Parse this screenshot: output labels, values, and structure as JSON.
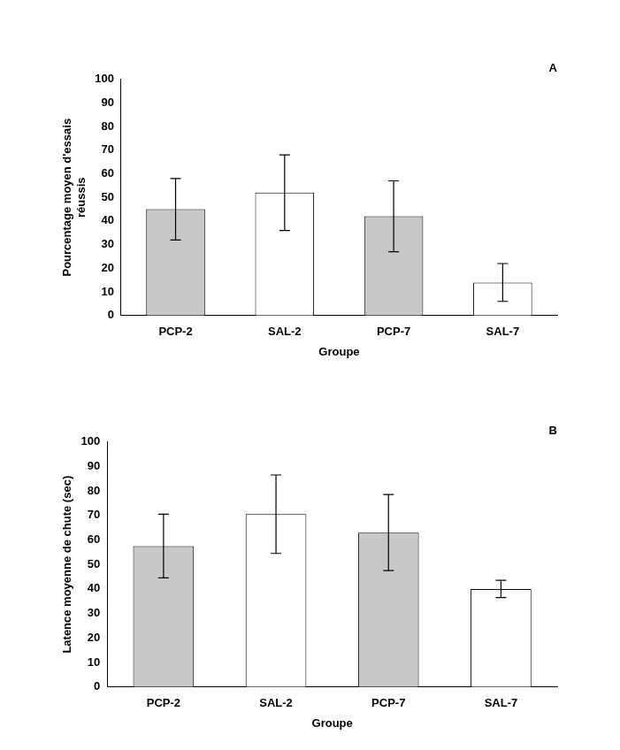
{
  "chart_data": [
    {
      "type": "bar",
      "title": "A",
      "y_label": [
        "Pourcentage moyen d'essais",
        "réussis"
      ],
      "x_label": "Groupe",
      "categories": [
        "PCP-2",
        "SAL-2",
        "PCP-7",
        "SAL-7"
      ],
      "values": [
        45,
        52,
        42,
        14
      ],
      "error": [
        13,
        16,
        15,
        8
      ],
      "colors": [
        "#c8c8c8",
        "#ffffff",
        "#c8c8c8",
        "#ffffff"
      ],
      "ylim": [
        0,
        100
      ],
      "yticks": [
        0,
        10,
        20,
        30,
        40,
        50,
        60,
        70,
        80,
        90,
        100
      ],
      "grid": false
    },
    {
      "type": "bar",
      "title": "B",
      "y_label": "Latence moyenne de chute (sec)",
      "x_label": "Groupe",
      "categories": [
        "PCP-2",
        "SAL-2",
        "PCP-7",
        "SAL-7"
      ],
      "values": [
        57.5,
        70.5,
        63,
        40
      ],
      "error": [
        13,
        16,
        15.5,
        3.5
      ],
      "colors": [
        "#c8c8c8",
        "#ffffff",
        "#c8c8c8",
        "#ffffff"
      ],
      "ylim": [
        0,
        100
      ],
      "yticks": [
        0,
        10,
        20,
        30,
        40,
        50,
        60,
        70,
        80,
        90,
        100
      ],
      "grid": false
    }
  ]
}
